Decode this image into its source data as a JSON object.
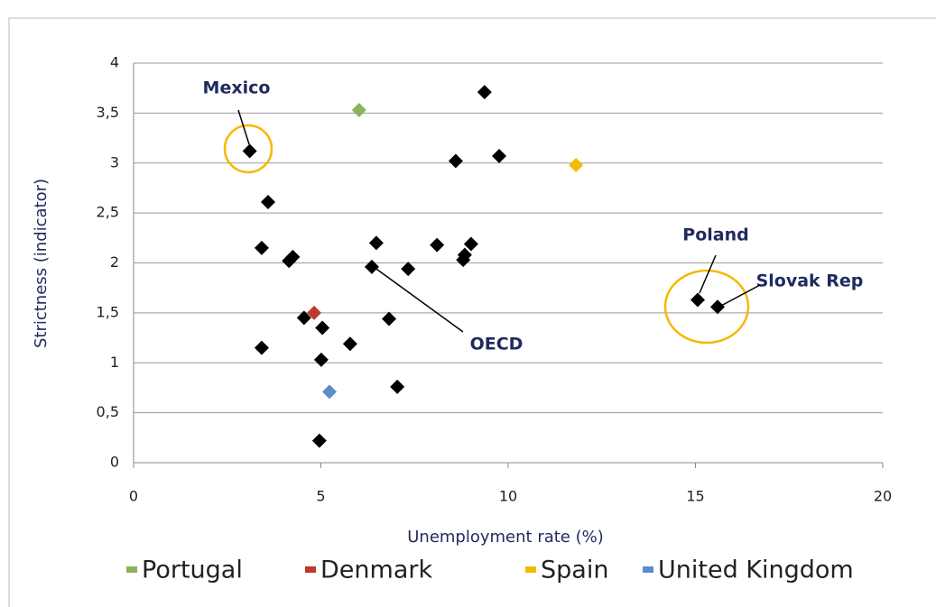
{
  "chart_data": {
    "type": "scatter",
    "xlabel": "Unemployment rate (%)",
    "ylabel": "Strictness (indicator)",
    "xlim": [
      0,
      20
    ],
    "xticks": [
      0,
      5,
      10,
      15,
      20
    ],
    "ylim": [
      0,
      4
    ],
    "yticks": [
      0,
      {
        "value": 0.5,
        "label": "0,5"
      },
      1,
      {
        "value": 1.5,
        "label": "1,5"
      },
      2,
      {
        "value": 2.5,
        "label": "2,5"
      },
      3,
      {
        "value": 3.5,
        "label": "3,5"
      },
      4
    ],
    "grid": true,
    "legend": "bottom",
    "series": [
      {
        "color": "#000000",
        "x": [
          3.1,
          9.37,
          8.6,
          9.76,
          3.59,
          3.42,
          4.15,
          4.25,
          6.48,
          8.1,
          9.01,
          8.84,
          8.8,
          6.36,
          7.33,
          15.06,
          15.59,
          4.55,
          5.04,
          6.82,
          5.78,
          3.42,
          5.01,
          7.04,
          4.96
        ],
        "values": [
          3.12,
          3.71,
          3.02,
          3.07,
          2.61,
          2.15,
          2.02,
          2.06,
          2.2,
          2.18,
          2.19,
          2.08,
          2.03,
          1.96,
          1.94,
          1.63,
          1.56,
          1.45,
          1.35,
          1.44,
          1.19,
          1.15,
          1.03,
          0.76,
          0.22
        ]
      },
      {
        "name": "Portugal",
        "color": "#8db35a",
        "x": [
          6.02
        ],
        "values": [
          3.53
        ]
      },
      {
        "name": "Denmark",
        "color": "#c0392b",
        "x": [
          4.82
        ],
        "values": [
          1.5
        ]
      },
      {
        "name": "Spain",
        "color": "#f5b800",
        "x": [
          11.81
        ],
        "values": [
          2.98
        ]
      },
      {
        "name": "United Kingdom",
        "color": "#5b8ccc",
        "x": [
          5.23
        ],
        "values": [
          0.71
        ]
      }
    ],
    "annotations": [
      "Mexico",
      "Poland",
      "Slovak Rep",
      "OECD"
    ]
  }
}
